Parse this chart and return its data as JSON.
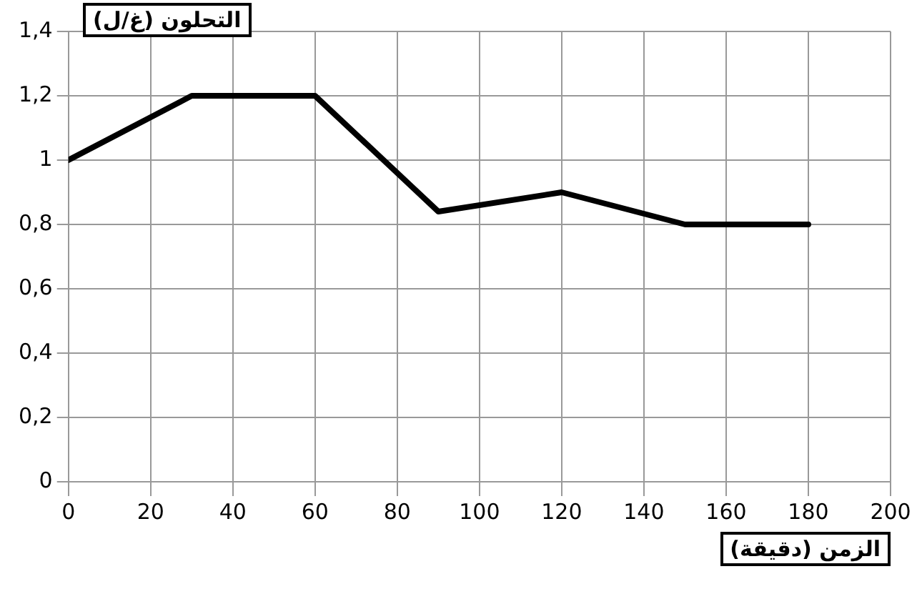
{
  "chart_data": {
    "type": "line",
    "xlabel": "الزمن (دقيقة)",
    "ylabel": "التحلون (غ/ل)",
    "x": [
      0,
      30,
      60,
      90,
      120,
      150,
      180
    ],
    "series": [
      {
        "color": "#000000",
        "values": [
          1,
          1.2,
          1.2,
          0.84,
          0.9,
          0.8,
          0.8
        ]
      }
    ],
    "xlim": [
      0,
      200
    ],
    "xticks": [
      0,
      20,
      40,
      60,
      80,
      100,
      120,
      140,
      160,
      180,
      200
    ],
    "ylim": [
      0,
      1.4
    ],
    "yticks": [
      {
        "value": 0,
        "label": "0"
      },
      {
        "value": 0.2,
        "label": "0,2"
      },
      {
        "value": 0.4,
        "label": "0,4"
      },
      {
        "value": 0.6,
        "label": "0,6"
      },
      {
        "value": 0.8,
        "label": "0,8"
      },
      {
        "value": 1,
        "label": "1"
      },
      {
        "value": 1.2,
        "label": "1,2"
      },
      {
        "value": 1.4,
        "label": "1,4"
      }
    ],
    "grid": true,
    "legend": false,
    "marker": "none",
    "line_style": "solid"
  }
}
